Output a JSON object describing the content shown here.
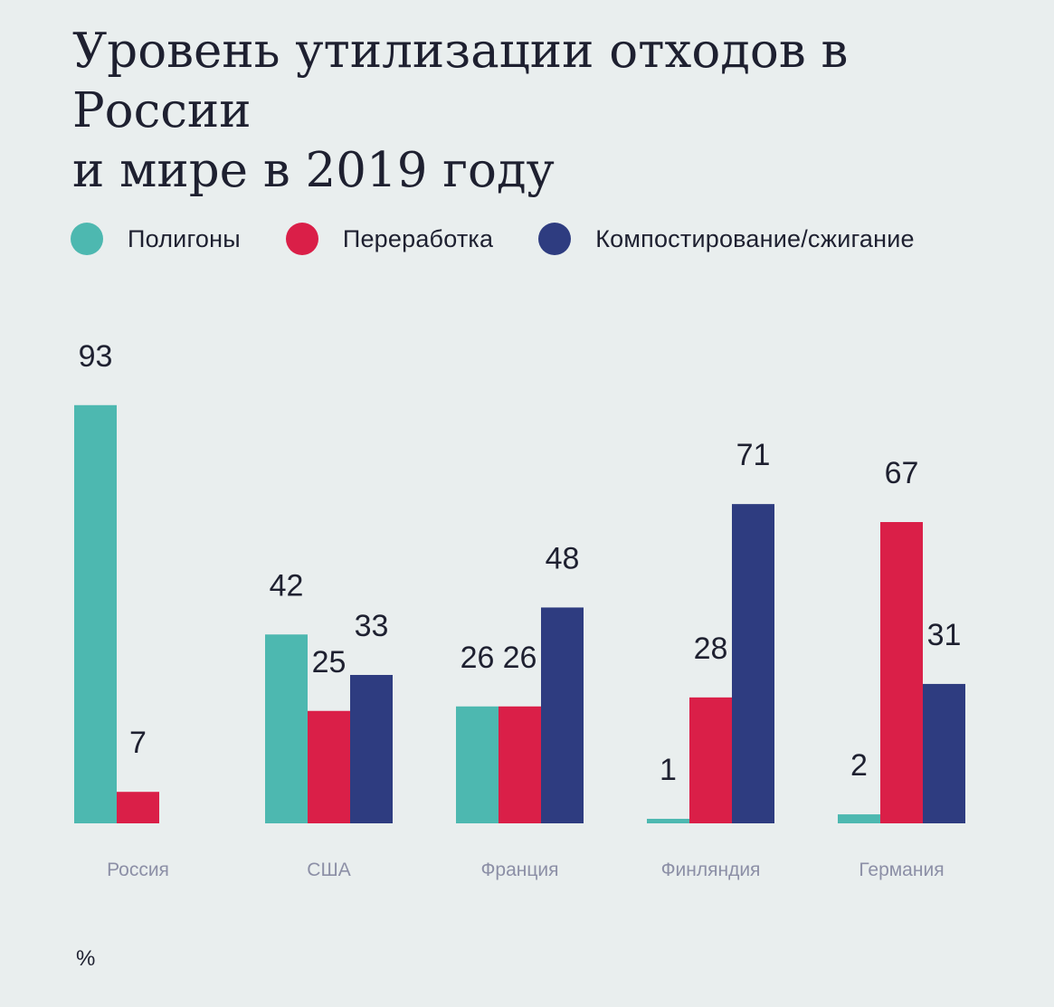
{
  "chart_data": {
    "type": "bar",
    "title": "Уровень утилизации  отходов в России\nи мире в 2019 году",
    "unit": "%",
    "categories": [
      "Россия",
      "США",
      "Франция",
      "Финляндия",
      "Германия"
    ],
    "series": [
      {
        "name": "Полигоны",
        "color": "#4db8b0",
        "values": [
          93,
          42,
          26,
          1,
          2
        ]
      },
      {
        "name": "Переработка",
        "color": "#da1f48",
        "values": [
          7,
          25,
          26,
          28,
          67
        ]
      },
      {
        "name": "Компостирование/сжигание",
        "color": "#2e3c80",
        "values": [
          null,
          33,
          48,
          71,
          31
        ]
      }
    ],
    "ylim": [
      0,
      100
    ],
    "legend_position": "top-left",
    "grid": false
  },
  "colors": {
    "background": "#e9eeee",
    "text": "#1e2030",
    "category_label": "#8c8fa6"
  }
}
